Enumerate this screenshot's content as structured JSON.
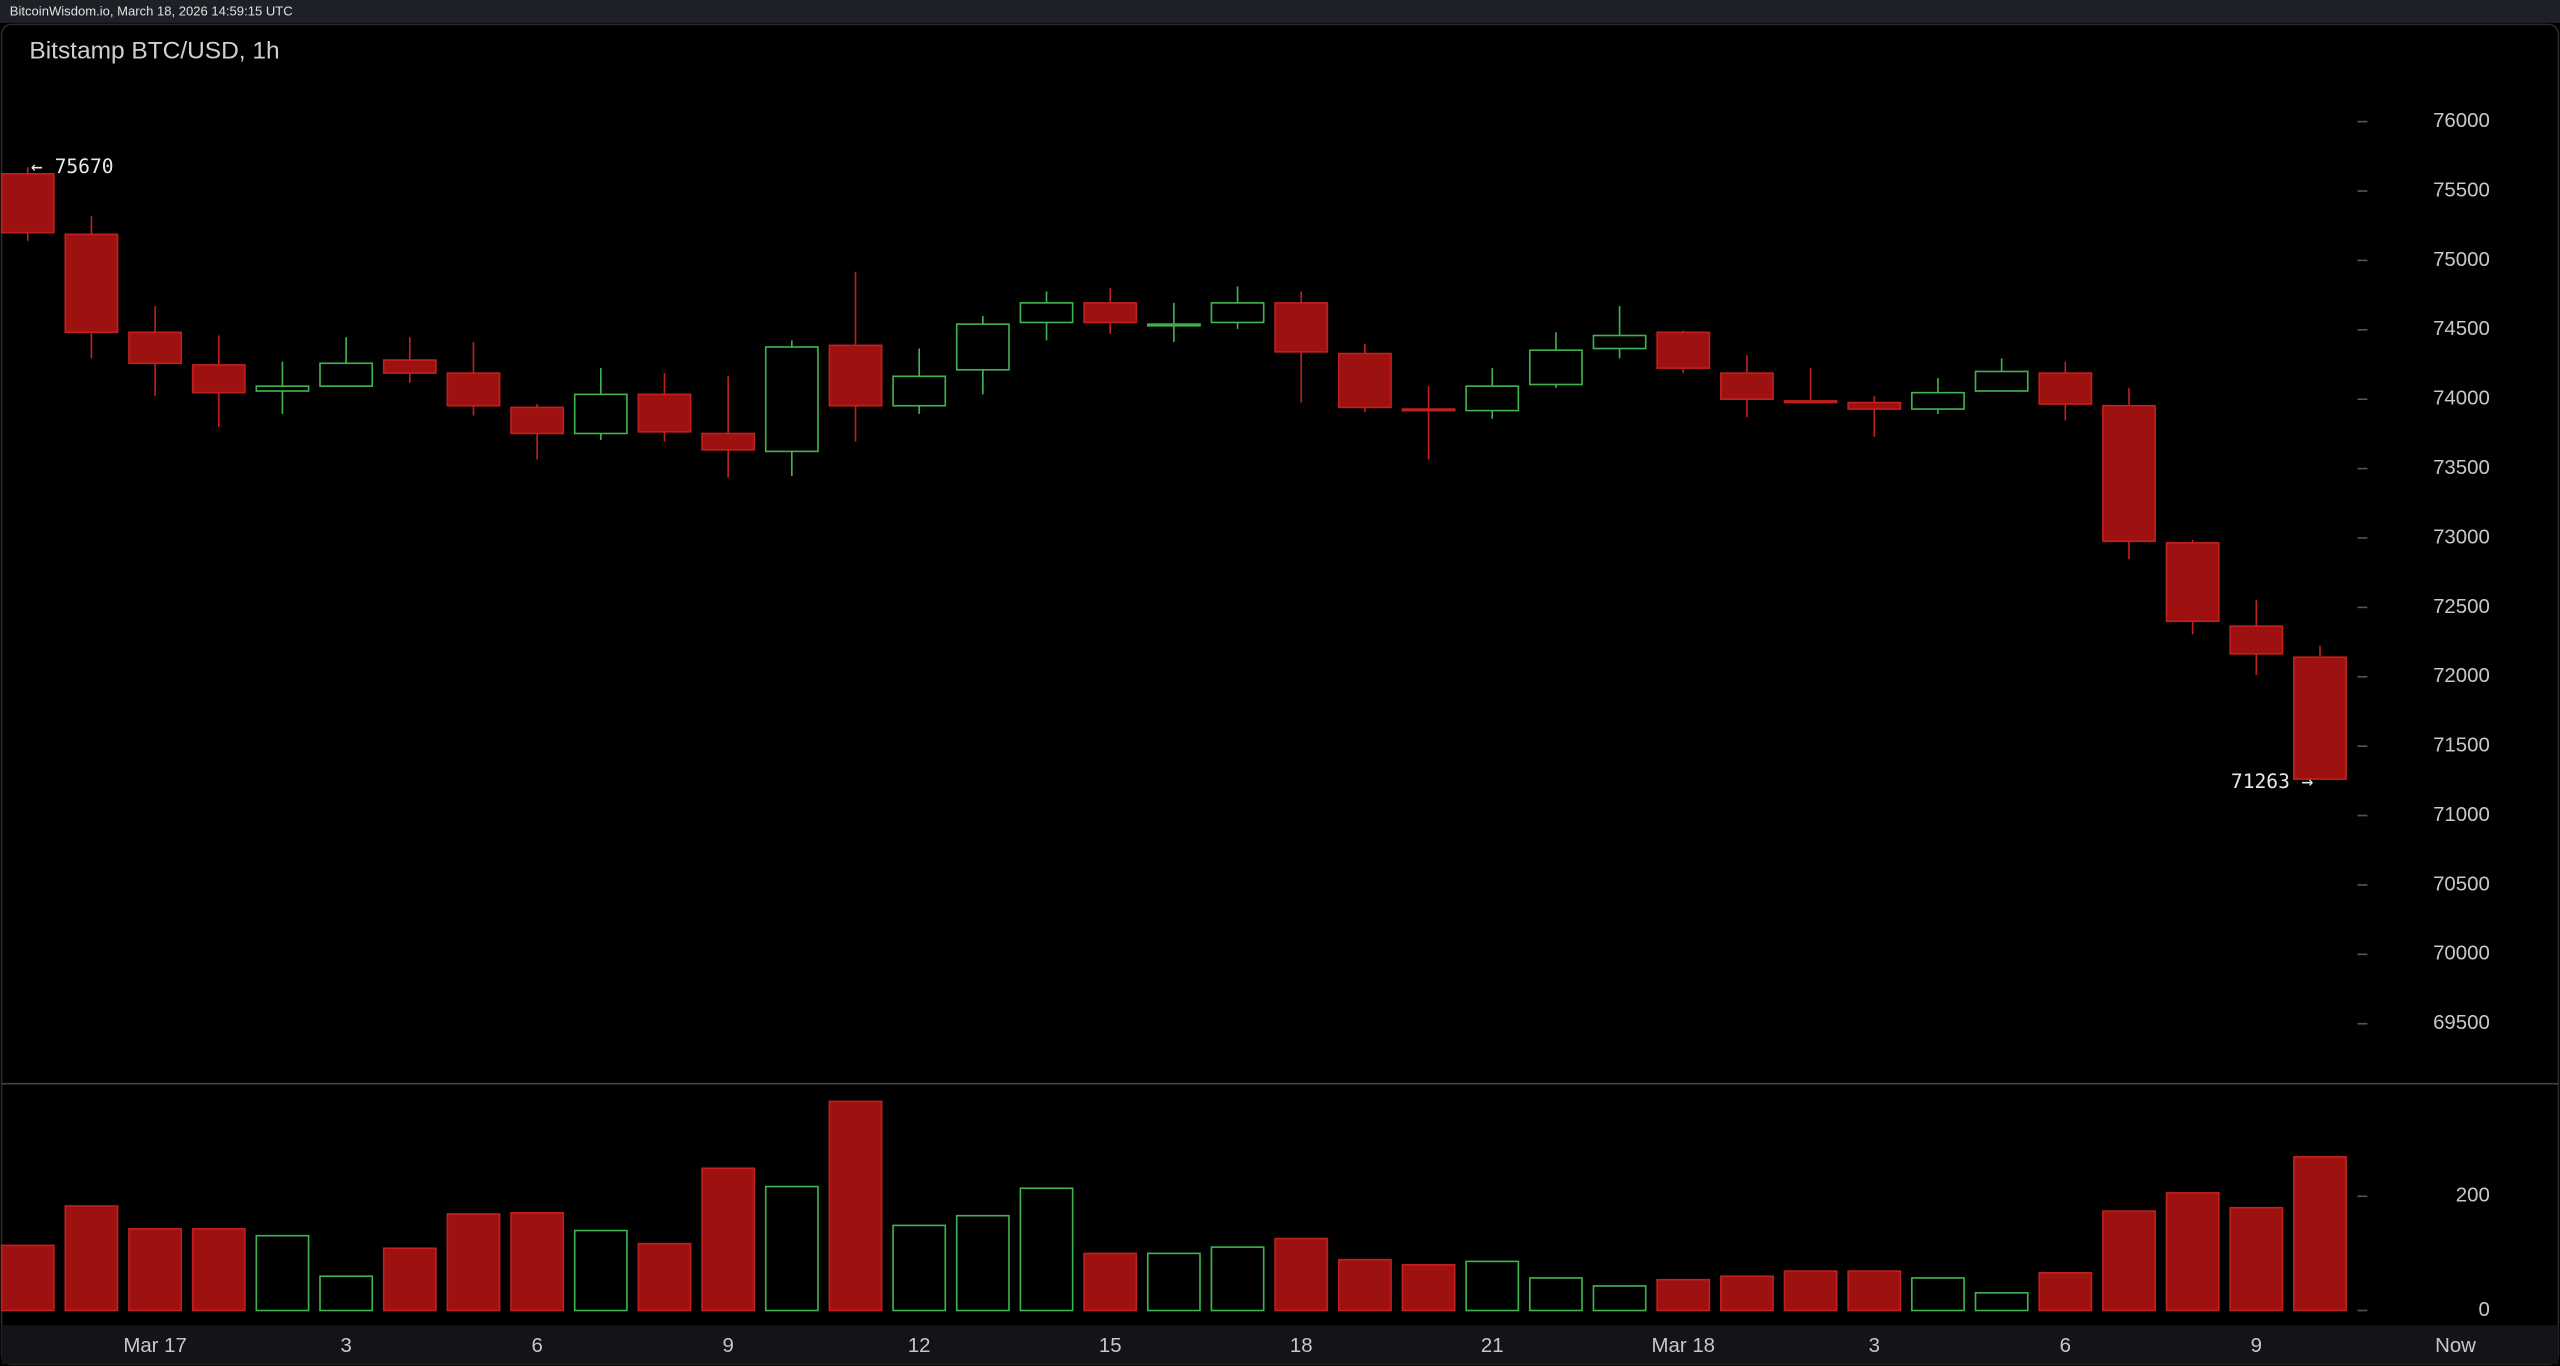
{
  "header": "BitcoinWisdom.io, March 18, 2026 14:59:15 UTC",
  "time_axis_end": "Now",
  "chart_data": [
    {
      "type": "candlestick",
      "title": "Bitstamp BTC/USD, 1h",
      "categories": [
        null,
        null,
        "Mar 17",
        null,
        null,
        "3",
        null,
        null,
        "6",
        null,
        null,
        "9",
        null,
        null,
        "12",
        null,
        null,
        "15",
        null,
        null,
        "18",
        null,
        null,
        "21",
        null,
        null,
        "Mar 18",
        null,
        null,
        "3",
        null,
        null,
        "6",
        null,
        null,
        "9",
        null
      ],
      "open": [
        75624,
        75188,
        74482,
        74247,
        74059,
        74094,
        74282,
        74188,
        73941,
        73753,
        74035,
        73753,
        73624,
        74388,
        73953,
        74212,
        74553,
        74694,
        74529,
        74553,
        74694,
        74329,
        73929,
        73918,
        74106,
        74365,
        74482,
        74188,
        73988,
        73976,
        73929,
        74059,
        74188,
        73953,
        72965,
        72365,
        72141
      ],
      "high": [
        75670,
        75318,
        74671,
        74459,
        74271,
        74447,
        74447,
        74412,
        73965,
        74224,
        74188,
        74165,
        74424,
        74918,
        74365,
        74600,
        74776,
        74800,
        74694,
        74812,
        74776,
        74400,
        74094,
        74224,
        74482,
        74671,
        74494,
        74318,
        74224,
        74024,
        74153,
        74294,
        74271,
        74082,
        72988,
        72553,
        72224
      ],
      "low": [
        75141,
        74294,
        74024,
        73800,
        73894,
        74094,
        74118,
        73882,
        73565,
        73706,
        73694,
        73435,
        73447,
        73694,
        73894,
        74035,
        74424,
        74471,
        74412,
        74506,
        73976,
        73906,
        73565,
        73859,
        74082,
        74294,
        74188,
        73871,
        73976,
        73729,
        73894,
        74059,
        73847,
        72847,
        72306,
        72012,
        71263
      ],
      "close": [
        75200,
        74482,
        74259,
        74047,
        74094,
        74259,
        74188,
        73953,
        73753,
        74035,
        73765,
        73635,
        74376,
        73953,
        74165,
        74541,
        74694,
        74553,
        74541,
        74694,
        74341,
        73941,
        73918,
        74094,
        74353,
        74459,
        74224,
        74000,
        73976,
        73929,
        74047,
        74200,
        73965,
        72976,
        72400,
        72165,
        71263
      ],
      "up_color": "#3fb34f",
      "down_color": "#9e1111",
      "ylim": [
        69080,
        76700
      ],
      "yticks": [
        69500,
        70000,
        70500,
        71000,
        71500,
        72000,
        72500,
        73000,
        73500,
        74000,
        74500,
        75000,
        75500,
        76000
      ],
      "high_label": {
        "value": 75670,
        "label": "← 75670"
      },
      "low_label": {
        "value": 71263,
        "label": "71263 →"
      }
    },
    {
      "type": "bar",
      "values": [
        114,
        183,
        143,
        143,
        131,
        60,
        109,
        169,
        171,
        140,
        117,
        249,
        217,
        366,
        149,
        166,
        214,
        100,
        100,
        111,
        126,
        89,
        80,
        86,
        57,
        43,
        54,
        60,
        69,
        69,
        57,
        31,
        66,
        174,
        206,
        180,
        269
      ],
      "ylim": [
        0,
        400
      ],
      "yticks": [
        0,
        200
      ]
    }
  ]
}
